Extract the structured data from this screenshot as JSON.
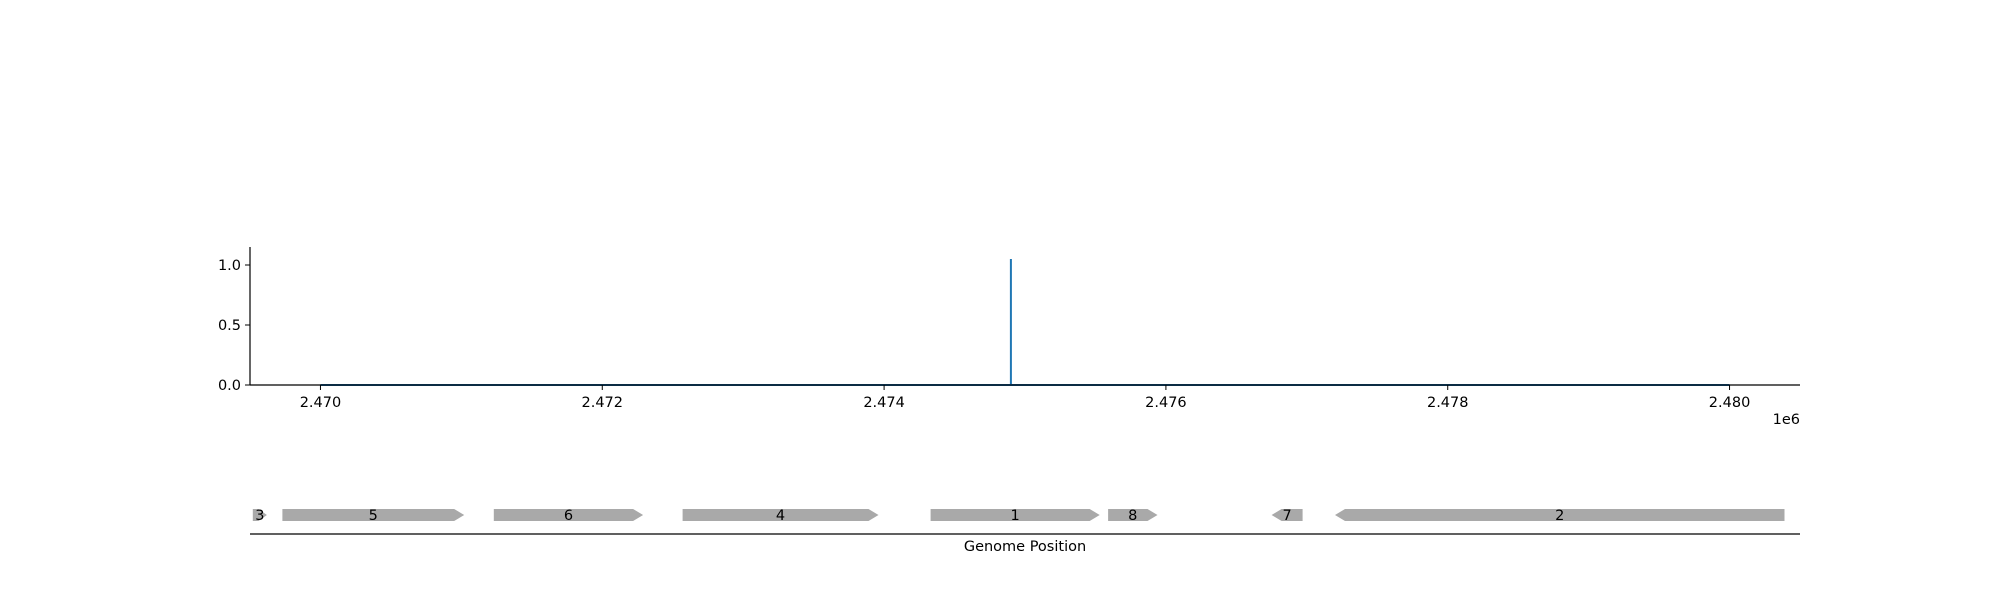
{
  "chart_data": [
    {
      "type": "line",
      "title": "",
      "xlabel": "",
      "ylabel": "",
      "x_offset_label": "1e6",
      "xlim": [
        2469500,
        2480500
      ],
      "ylim": [
        0,
        1.15
      ],
      "x_ticks": [
        2470000,
        2472000,
        2474000,
        2476000,
        2478000,
        2480000
      ],
      "x_tick_labels": [
        "2.470",
        "2.472",
        "2.474",
        "2.476",
        "2.478",
        "2.480"
      ],
      "y_ticks": [
        0.0,
        0.5,
        1.0
      ],
      "y_tick_labels": [
        "0.0",
        "0.5",
        "1.0"
      ],
      "grid": false,
      "series": [
        {
          "color": "#1f77b4",
          "x": [
            2470000,
            2474900,
            2474900,
            2474900,
            2480000
          ],
          "y": [
            0,
            0,
            1.05,
            0,
            0
          ]
        }
      ]
    },
    {
      "type": "gene_track",
      "xlabel": "Genome Position",
      "xlim": [
        2469500,
        2480500
      ],
      "feature_color": "#a9a9a9",
      "features": [
        {
          "label": "3",
          "start": 2469520,
          "end": 2469620,
          "strand": 1
        },
        {
          "label": "5",
          "start": 2469730,
          "end": 2471020,
          "strand": 1
        },
        {
          "label": "6",
          "start": 2471230,
          "end": 2472290,
          "strand": 1
        },
        {
          "label": "4",
          "start": 2472570,
          "end": 2473960,
          "strand": 1
        },
        {
          "label": "1",
          "start": 2474330,
          "end": 2475530,
          "strand": 1
        },
        {
          "label": "8",
          "start": 2475590,
          "end": 2475940,
          "strand": 1
        },
        {
          "label": "7",
          "start": 2476750,
          "end": 2476970,
          "strand": -1
        },
        {
          "label": "2",
          "start": 2477200,
          "end": 2480390,
          "strand": -1
        }
      ]
    }
  ]
}
